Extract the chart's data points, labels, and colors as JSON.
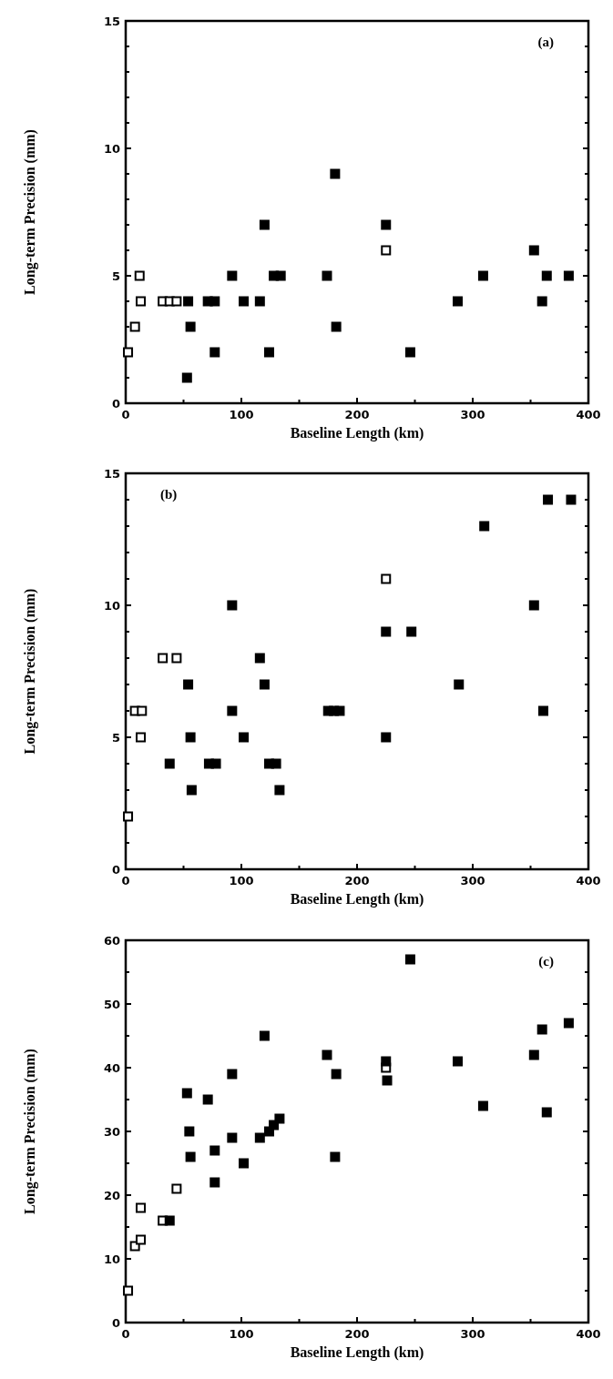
{
  "chart_data": [
    {
      "type": "scatter",
      "xlabel": "Baseline Length (km)",
      "ylabel": "Long-term Precision (mm)",
      "annotations": [
        "(a)"
      ],
      "marker": "square",
      "grid": false,
      "xlim": [
        0,
        400
      ],
      "xticks": [
        0,
        {
          "value": 50,
          "label": null
        },
        100,
        {
          "value": 150,
          "label": null
        },
        200,
        {
          "value": 250,
          "label": null
        },
        300,
        {
          "value": 350,
          "label": null
        },
        400
      ],
      "ylim": [
        0,
        15
      ],
      "yticks": [
        0,
        {
          "value": 1,
          "label": null
        },
        {
          "value": 2,
          "label": null
        },
        {
          "value": 3,
          "label": null
        },
        {
          "value": 4,
          "label": null
        },
        5,
        {
          "value": 6,
          "label": null
        },
        {
          "value": 7,
          "label": null
        },
        {
          "value": 8,
          "label": null
        },
        {
          "value": 9,
          "label": null
        },
        10,
        {
          "value": 11,
          "label": null
        },
        {
          "value": 12,
          "label": null
        },
        {
          "value": 13,
          "label": null
        },
        {
          "value": 14,
          "label": null
        },
        15
      ],
      "series": [
        {
          "color": "#ffffff",
          "x": [
            2,
            8,
            13,
            12,
            32,
            38,
            44,
            225
          ],
          "values": [
            2,
            3,
            4,
            5,
            4,
            4,
            4,
            6
          ]
        },
        {
          "color": "#000000",
          "x": [
            53,
            54,
            56,
            71,
            77,
            77,
            92,
            102,
            116,
            120,
            124,
            128,
            134,
            174,
            181,
            182,
            225,
            246,
            287,
            309,
            353,
            360,
            364,
            383
          ],
          "values": [
            1,
            4,
            3,
            4,
            4,
            2,
            5,
            4,
            4,
            7,
            2,
            5,
            5,
            5,
            9,
            3,
            7,
            2,
            4,
            5,
            6,
            4,
            5,
            5
          ]
        }
      ]
    },
    {
      "type": "scatter",
      "xlabel": "Baseline Length (km)",
      "ylabel": "Long-term Precision (mm)",
      "annotations": [
        "(b)"
      ],
      "marker": "square",
      "grid": false,
      "xlim": [
        0,
        400
      ],
      "xticks": [
        0,
        {
          "value": 50,
          "label": null
        },
        100,
        {
          "value": 150,
          "label": null
        },
        200,
        {
          "value": 250,
          "label": null
        },
        300,
        {
          "value": 350,
          "label": null
        },
        400
      ],
      "ylim": [
        0,
        15
      ],
      "yticks": [
        0,
        {
          "value": 1,
          "label": null
        },
        {
          "value": 2,
          "label": null
        },
        {
          "value": 3,
          "label": null
        },
        {
          "value": 4,
          "label": null
        },
        5,
        {
          "value": 6,
          "label": null
        },
        {
          "value": 7,
          "label": null
        },
        {
          "value": 8,
          "label": null
        },
        {
          "value": 9,
          "label": null
        },
        10,
        {
          "value": 11,
          "label": null
        },
        {
          "value": 12,
          "label": null
        },
        {
          "value": 13,
          "label": null
        },
        {
          "value": 14,
          "label": null
        },
        15
      ],
      "series": [
        {
          "color": "#ffffff",
          "x": [
            2,
            8,
            14,
            13,
            32,
            44,
            225
          ],
          "values": [
            2,
            6,
            6,
            5,
            8,
            8,
            11
          ]
        },
        {
          "color": "#000000",
          "x": [
            38,
            54,
            56,
            57,
            72,
            78,
            92,
            92,
            102,
            116,
            120,
            124,
            130,
            133,
            175,
            180,
            185,
            225,
            225,
            247,
            288,
            310,
            353,
            361,
            365,
            385
          ],
          "values": [
            4,
            7,
            5,
            3,
            4,
            4,
            10,
            6,
            5,
            8,
            7,
            4,
            4,
            3,
            6,
            6,
            6,
            9,
            5,
            9,
            7,
            13,
            10,
            6,
            14,
            14
          ]
        }
      ]
    },
    {
      "type": "scatter",
      "xlabel": "Baseline Length (km)",
      "ylabel": "Long-term Precision (mm)",
      "annotations": [
        "(c)"
      ],
      "marker": "square",
      "grid": false,
      "xlim": [
        0,
        400
      ],
      "xticks": [
        0,
        {
          "value": 50,
          "label": null
        },
        100,
        {
          "value": 150,
          "label": null
        },
        200,
        {
          "value": 250,
          "label": null
        },
        300,
        {
          "value": 350,
          "label": null
        },
        400
      ],
      "ylim": [
        0,
        60
      ],
      "yticks": [
        0,
        {
          "value": 5,
          "label": null
        },
        10,
        {
          "value": 15,
          "label": null
        },
        20,
        {
          "value": 25,
          "label": null
        },
        30,
        {
          "value": 35,
          "label": null
        },
        40,
        {
          "value": 45,
          "label": null
        },
        50,
        {
          "value": 55,
          "label": null
        },
        60
      ],
      "series": [
        {
          "color": "#ffffff",
          "x": [
            2,
            8,
            13,
            13,
            32,
            44,
            225
          ],
          "values": [
            5,
            12,
            13,
            18,
            16,
            21,
            40
          ]
        },
        {
          "color": "#000000",
          "x": [
            38,
            53,
            55,
            56,
            71,
            77,
            77,
            92,
            92,
            102,
            116,
            120,
            124,
            128,
            133,
            174,
            182,
            181,
            225,
            226,
            246,
            287,
            309,
            353,
            360,
            364,
            383
          ],
          "values": [
            16,
            36,
            30,
            26,
            35,
            27,
            22,
            39,
            29,
            25,
            29,
            45,
            30,
            31,
            32,
            42,
            39,
            26,
            41,
            38,
            57,
            41,
            34,
            42,
            46,
            33,
            47
          ]
        }
      ]
    }
  ]
}
